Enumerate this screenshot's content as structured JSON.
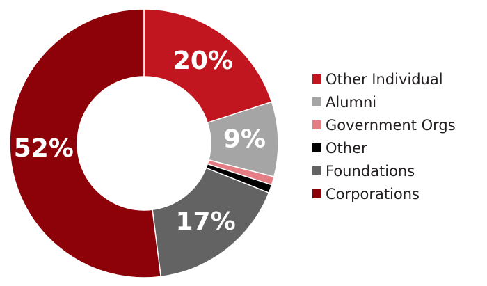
{
  "chart_data": {
    "type": "pie",
    "style": "donut",
    "legend_position": "right",
    "series": [
      {
        "name": "Other Individual",
        "value": 20,
        "label": "20%",
        "color": "#c1161f"
      },
      {
        "name": "Alumni",
        "value": 9,
        "label": "9%",
        "color": "#a5a5a5"
      },
      {
        "name": "Government Orgs",
        "value": 1,
        "label": "",
        "color": "#e47e84"
      },
      {
        "name": "Other",
        "value": 1,
        "label": "",
        "color": "#000000"
      },
      {
        "name": "Foundations",
        "value": 17,
        "label": "17%",
        "color": "#636363"
      },
      {
        "name": "Corporations",
        "value": 52,
        "label": "52%",
        "color": "#8c0208"
      }
    ]
  }
}
